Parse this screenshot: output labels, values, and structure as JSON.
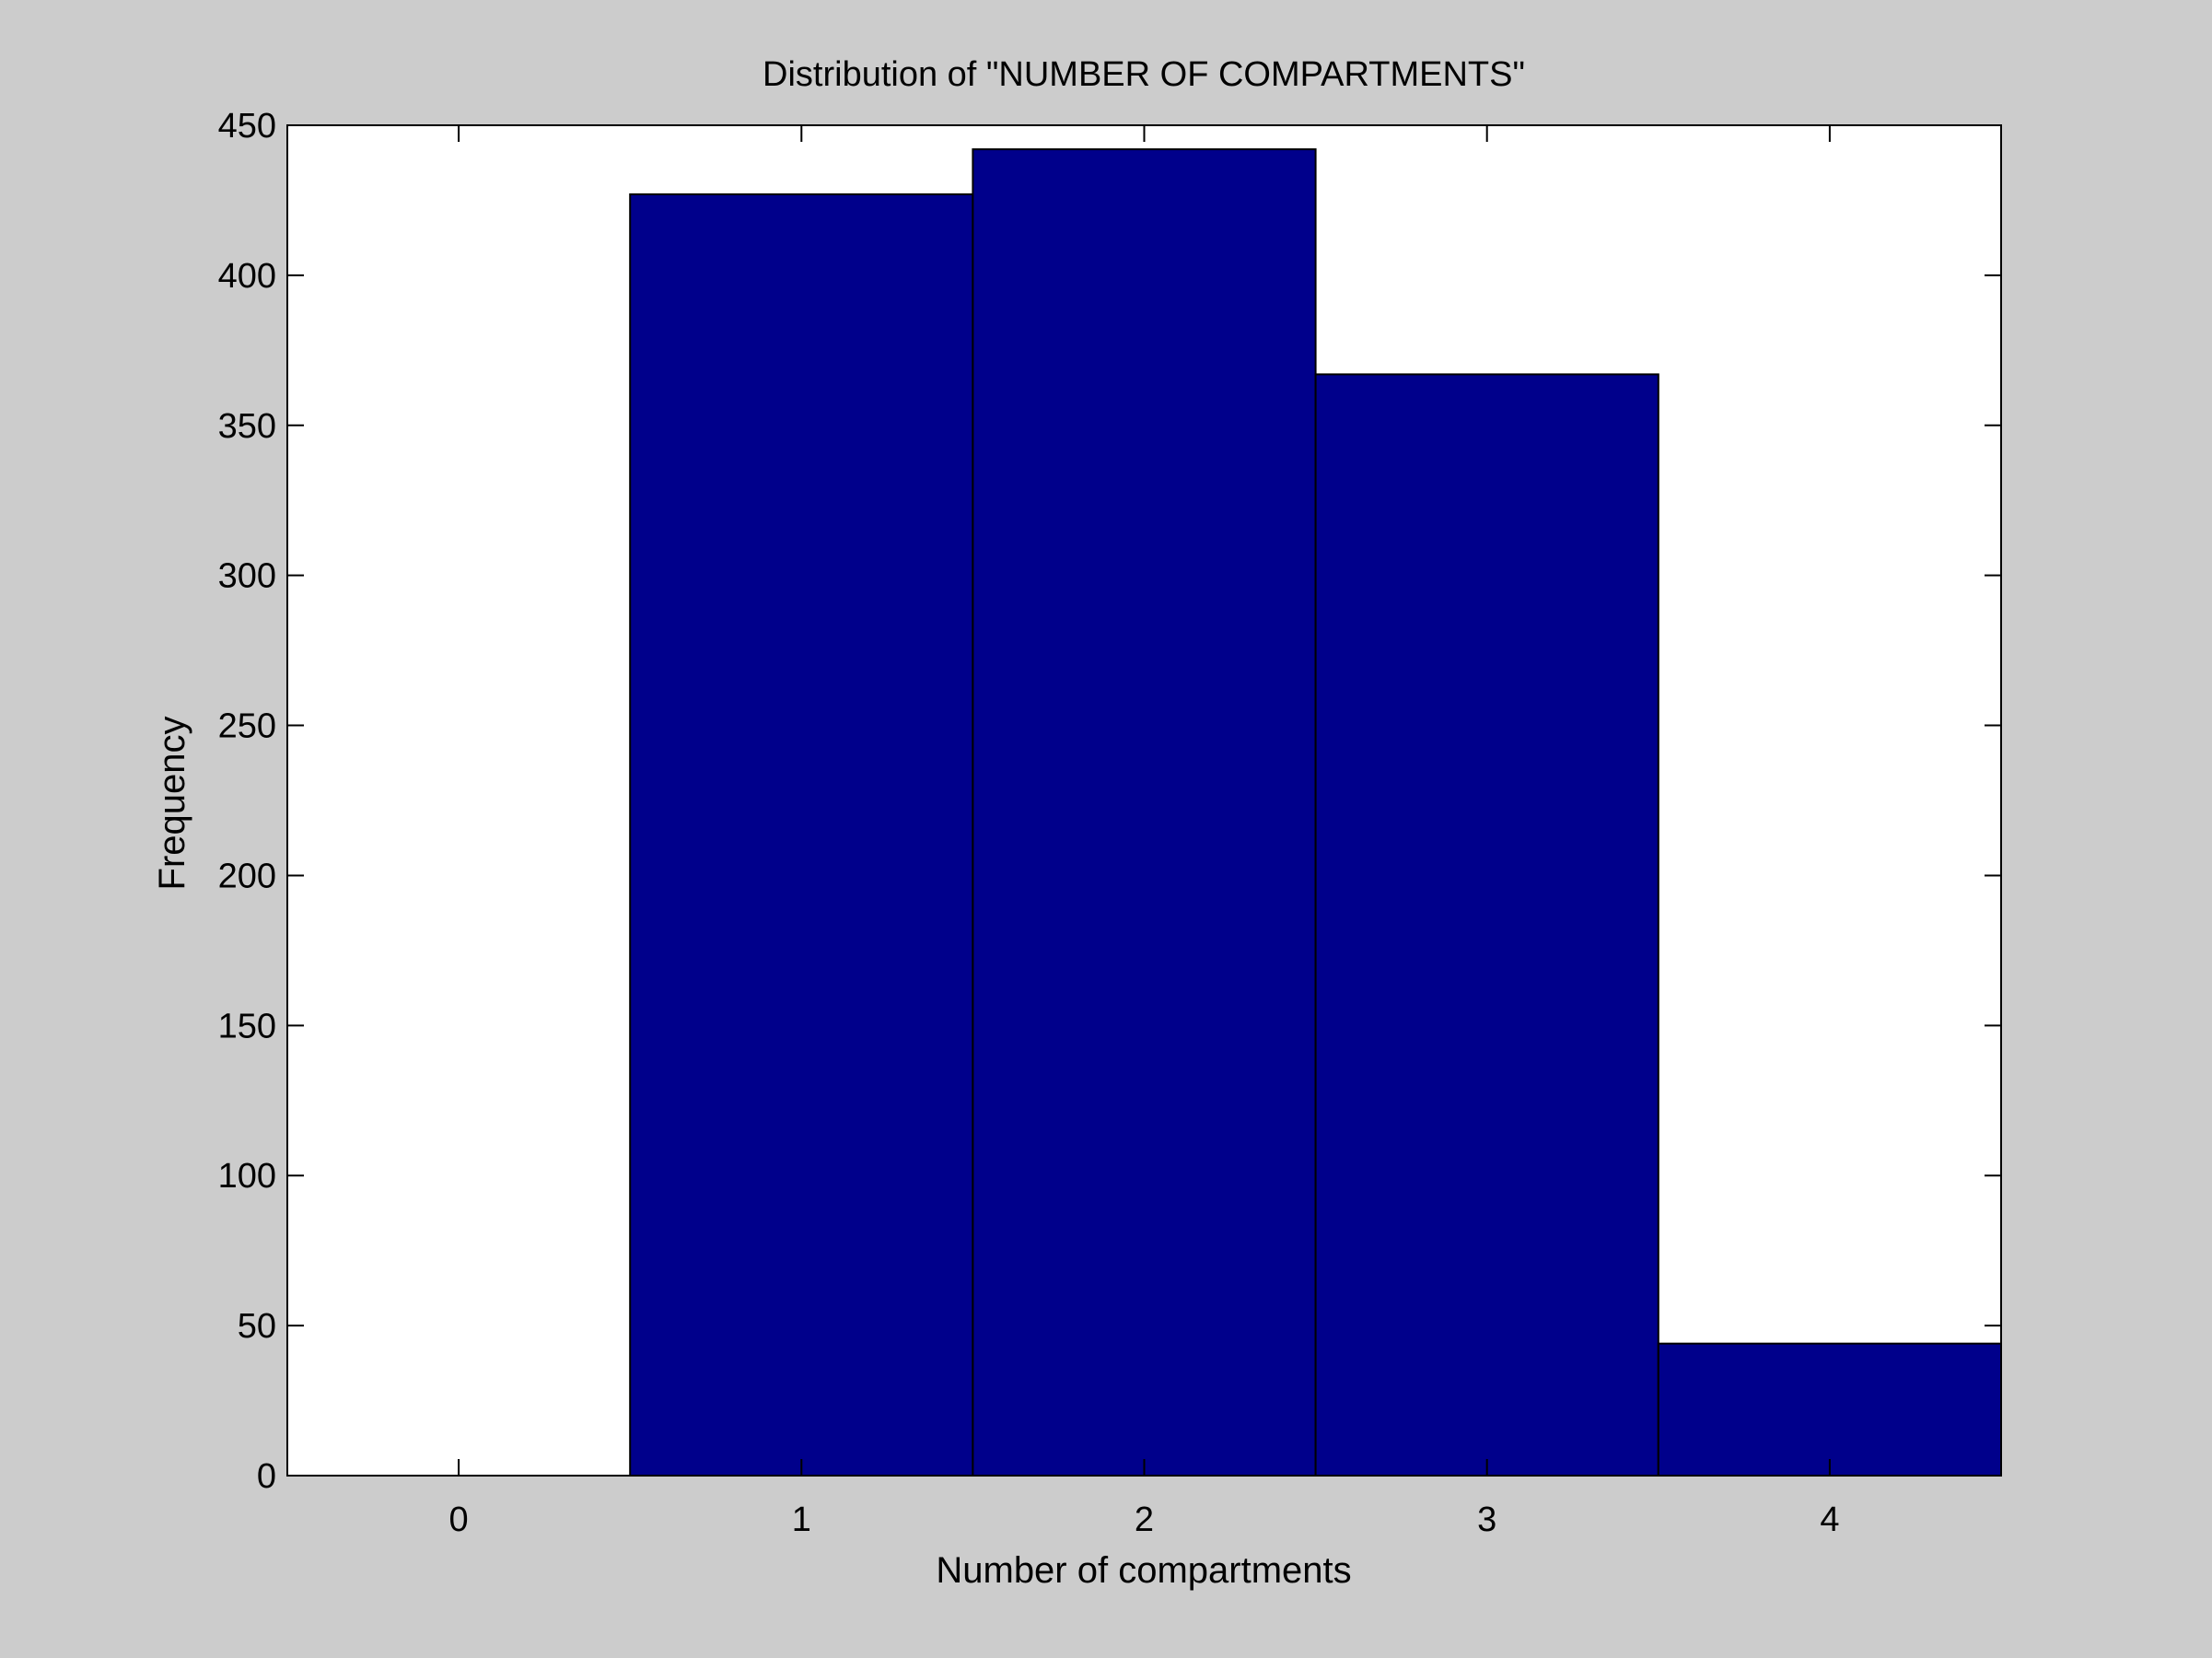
{
  "colors": {
    "figure_background": "#cccccc",
    "axes_background": "#ffffff",
    "bar_fill": "#00008b",
    "bar_edge": "#000000"
  },
  "chart_data": {
    "type": "bar",
    "title": "Distribution of \"NUMBER OF COMPARTMENTS\"",
    "xlabel": "Number of compartments",
    "ylabel": "Frequency",
    "categories": [
      "0",
      "1",
      "2",
      "3",
      "4"
    ],
    "x": [
      0,
      1,
      2,
      3,
      4
    ],
    "values": [
      0,
      427,
      442,
      367,
      44
    ],
    "xlim": [
      -0.5,
      4.5
    ],
    "ylim": [
      0,
      450
    ],
    "xticks": [
      0,
      1,
      2,
      3,
      4
    ],
    "yticks": [
      0,
      50,
      100,
      150,
      200,
      250,
      300,
      350,
      400,
      450
    ],
    "grid": false,
    "legend": "none"
  }
}
